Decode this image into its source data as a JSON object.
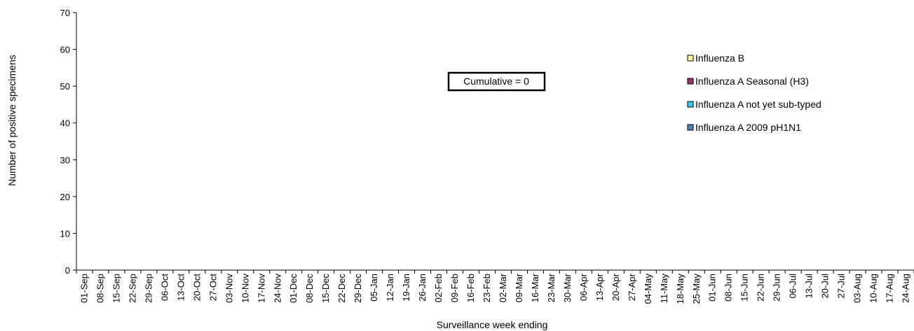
{
  "chart_data": {
    "type": "bar",
    "stacked": true,
    "title": "",
    "xlabel": "Surveillance week ending",
    "ylabel": "Number of positive specimens",
    "ylim": [
      0,
      70
    ],
    "yticks": [
      0,
      10,
      20,
      30,
      40,
      50,
      60,
      70
    ],
    "grid": false,
    "legend_position": "right",
    "categories": [
      "01-Sep",
      "08-Sep",
      "15-Sep",
      "22-Sep",
      "29-Sep",
      "06-Oct",
      "13-Oct",
      "20-Oct",
      "27-Oct",
      "03-Nov",
      "10-Nov",
      "17-Nov",
      "24-Nov",
      "01-Dec",
      "08-Dec",
      "15-Dec",
      "22-Dec",
      "29-Dec",
      "05-Jan",
      "12-Jan",
      "19-Jan",
      "26-Jan",
      "02-Feb",
      "09-Feb",
      "16-Feb",
      "23-Feb",
      "02-Mar",
      "09-Mar",
      "16-Mar",
      "23-Mar",
      "30-Mar",
      "06-Apr",
      "13-Apr",
      "20-Apr",
      "27-Apr",
      "04-May",
      "11-May",
      "18-May",
      "25-May",
      "01-Jun",
      "08-Jun",
      "15-Jun",
      "22-Jun",
      "29-Jun",
      "06-Jul",
      "13-Jul",
      "20-Jul",
      "27-Jul",
      "03-Aug",
      "10-Aug",
      "17-Aug",
      "24-Aug"
    ],
    "series": [
      {
        "name": "Influenza B",
        "color": "#ffff99",
        "values": [
          0,
          0,
          0,
          0,
          0,
          0,
          0,
          0,
          0,
          0,
          0,
          0,
          0,
          0,
          0,
          0,
          0,
          0,
          0,
          0,
          0,
          0,
          0,
          0,
          0,
          0,
          0,
          0,
          0,
          0,
          0,
          0,
          0,
          0,
          0,
          0,
          0,
          0,
          0,
          0,
          0,
          0,
          0,
          0,
          0,
          0,
          0,
          0,
          0,
          0,
          0,
          0
        ]
      },
      {
        "name": "Influenza A Seasonal (H3)",
        "color": "#993366",
        "values": [
          0,
          0,
          0,
          0,
          0,
          0,
          0,
          0,
          0,
          0,
          0,
          0,
          0,
          0,
          0,
          0,
          0,
          0,
          0,
          0,
          0,
          0,
          0,
          0,
          0,
          0,
          0,
          0,
          0,
          0,
          0,
          0,
          0,
          0,
          0,
          0,
          0,
          0,
          0,
          0,
          0,
          0,
          0,
          0,
          0,
          0,
          0,
          0,
          0,
          0,
          0,
          0
        ]
      },
      {
        "name": "Influenza A not yet sub-typed",
        "color": "#33ccff",
        "values": [
          0,
          0,
          0,
          0,
          0,
          0,
          0,
          0,
          0,
          0,
          0,
          0,
          0,
          0,
          0,
          0,
          0,
          0,
          0,
          0,
          0,
          0,
          0,
          0,
          0,
          0,
          0,
          0,
          0,
          0,
          0,
          0,
          0,
          0,
          0,
          0,
          0,
          0,
          0,
          0,
          0,
          0,
          0,
          0,
          0,
          0,
          0,
          0,
          0,
          0,
          0,
          0
        ]
      },
      {
        "name": "Influenza A 2009 pH1N1",
        "color": "#4f81bd",
        "values": [
          0,
          0,
          0,
          0,
          0,
          0,
          0,
          0,
          0,
          0,
          0,
          0,
          0,
          0,
          0,
          0,
          0,
          0,
          0,
          0,
          0,
          0,
          0,
          0,
          0,
          0,
          0,
          0,
          0,
          0,
          0,
          0,
          0,
          0,
          0,
          0,
          0,
          0,
          0,
          0,
          0,
          0,
          0,
          0,
          0,
          0,
          0,
          0,
          0,
          0,
          0,
          0
        ]
      }
    ],
    "annotation": "Cumulative = 0"
  }
}
